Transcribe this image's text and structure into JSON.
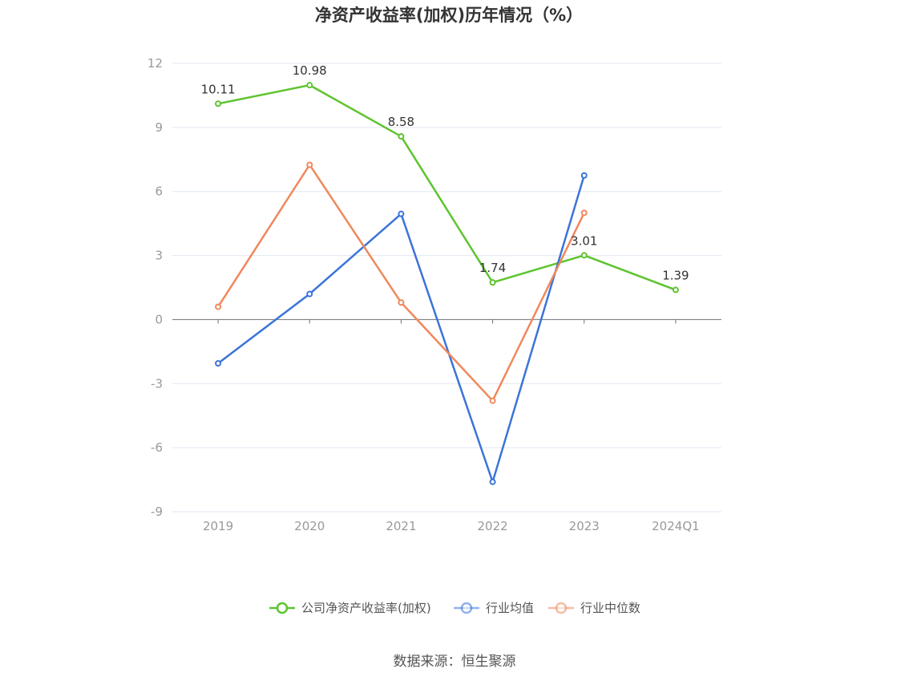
{
  "chart_data": {
    "type": "line",
    "title": "净资产收益率(加权)历年情况（%）",
    "categories": [
      "2019",
      "2020",
      "2021",
      "2022",
      "2023",
      "2024Q1"
    ],
    "ylim": [
      -9,
      12
    ],
    "yticks": [
      12,
      9,
      6,
      3,
      0,
      -3,
      -6,
      -9
    ],
    "grid": true,
    "legend_position": "bottom",
    "series": [
      {
        "name": "公司净资产收益率(加权)",
        "color": "#5ec42f",
        "values": [
          10.11,
          10.98,
          8.58,
          1.74,
          3.01,
          1.39
        ],
        "labels": [
          "10.11",
          "10.98",
          "8.58",
          "1.74",
          "3.01",
          "1.39"
        ]
      },
      {
        "name": "行业均值",
        "color": "#3b74d9",
        "values": [
          -2.05,
          1.2,
          4.95,
          -7.6,
          6.75,
          null
        ]
      },
      {
        "name": "行业中位数",
        "color": "#f0885c",
        "values": [
          0.6,
          7.25,
          0.8,
          -3.8,
          5.0,
          null
        ]
      }
    ]
  },
  "source": "数据来源：恒生聚源"
}
